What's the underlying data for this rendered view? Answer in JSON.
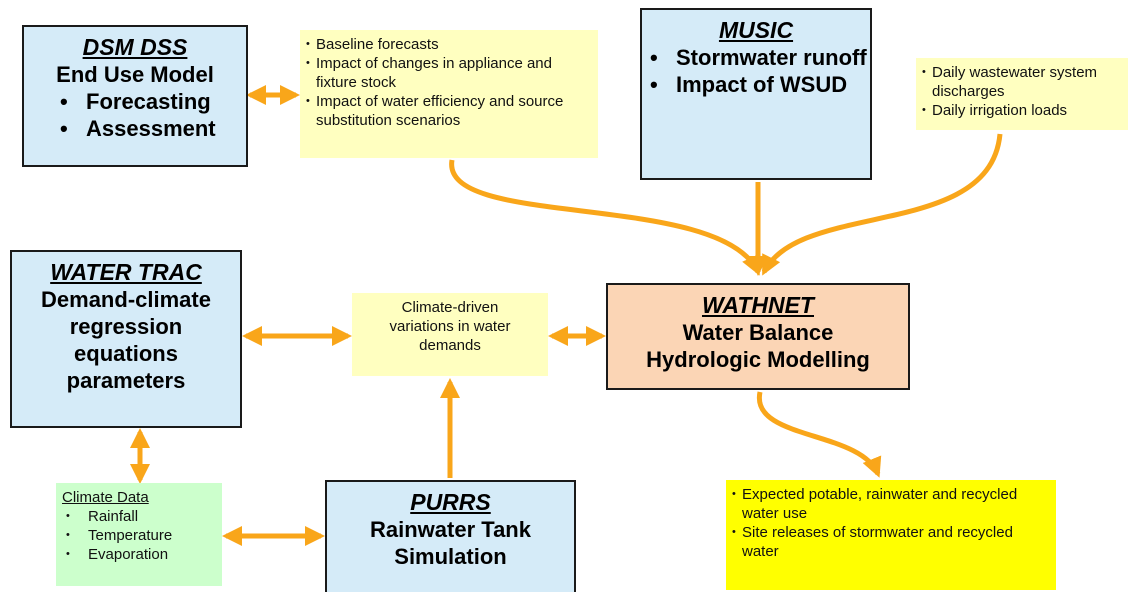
{
  "nodes": [
    {
      "title": "DSM DSS",
      "lines": [
        "End Use Model"
      ],
      "items": [
        "Forecasting",
        "Assessment"
      ]
    },
    {
      "items": [
        "Baseline forecasts",
        "Impact of changes in appliance and fixture stock",
        "Impact of water efficiency and source substitution scenarios"
      ]
    },
    {
      "title": "MUSIC",
      "items": [
        "Stormwater runoff",
        "Impact of WSUD"
      ]
    },
    {
      "items": [
        "Daily wastewater system discharges",
        "Daily irrigation loads"
      ]
    },
    {
      "title": "WATER TRAC",
      "lines": [
        "Demand-climate regression equations parameters"
      ]
    },
    {
      "lines": [
        "Climate-driven variations in water demands"
      ]
    },
    {
      "title": "WATHNET",
      "lines": [
        "Water Balance",
        "Hydrologic Modelling"
      ]
    },
    {
      "title": "Climate Data",
      "items": [
        "Rainfall",
        "Temperature",
        "Evaporation"
      ]
    },
    {
      "title": "PURRS",
      "lines": [
        "Rainwater Tank",
        "Simulation"
      ]
    },
    {
      "items": [
        "Expected potable, rainwater and recycled water use",
        "Site releases of stormwater and recycled water"
      ]
    }
  ]
}
